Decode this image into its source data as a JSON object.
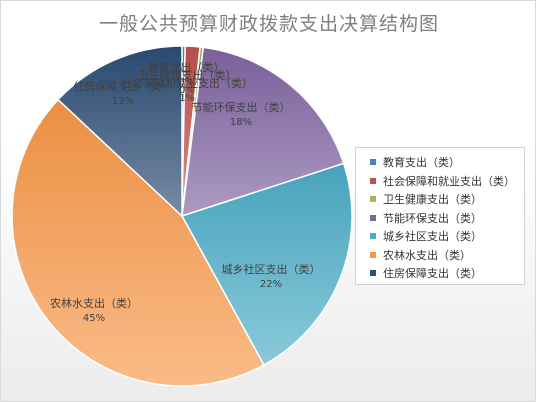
{
  "title": "一般公共预算财政拨款支出决算结构图",
  "chart_data": {
    "type": "pie",
    "title": "一般公共预算财政拨款支出决算结构图",
    "categories": [
      "教育支出（类）",
      "社会保障和就业支出（类）",
      "卫生健康支出（类）",
      "节能环保支出（类）",
      "城乡社区支出（类）",
      "农林水支出（类）",
      "住房保障支出（类）"
    ],
    "values": [
      0.3,
      1.4,
      0.3,
      18,
      22,
      45,
      13
    ],
    "value_labels": [
      "0%",
      "1%",
      "0%",
      "18%",
      "22%",
      "45%",
      "13%"
    ],
    "colors": [
      "#4f81bd",
      "#c0504d",
      "#9bbb59",
      "#8064a2",
      "#4bacc6",
      "#f79646",
      "#2c4d75"
    ],
    "legend_position": "right"
  }
}
